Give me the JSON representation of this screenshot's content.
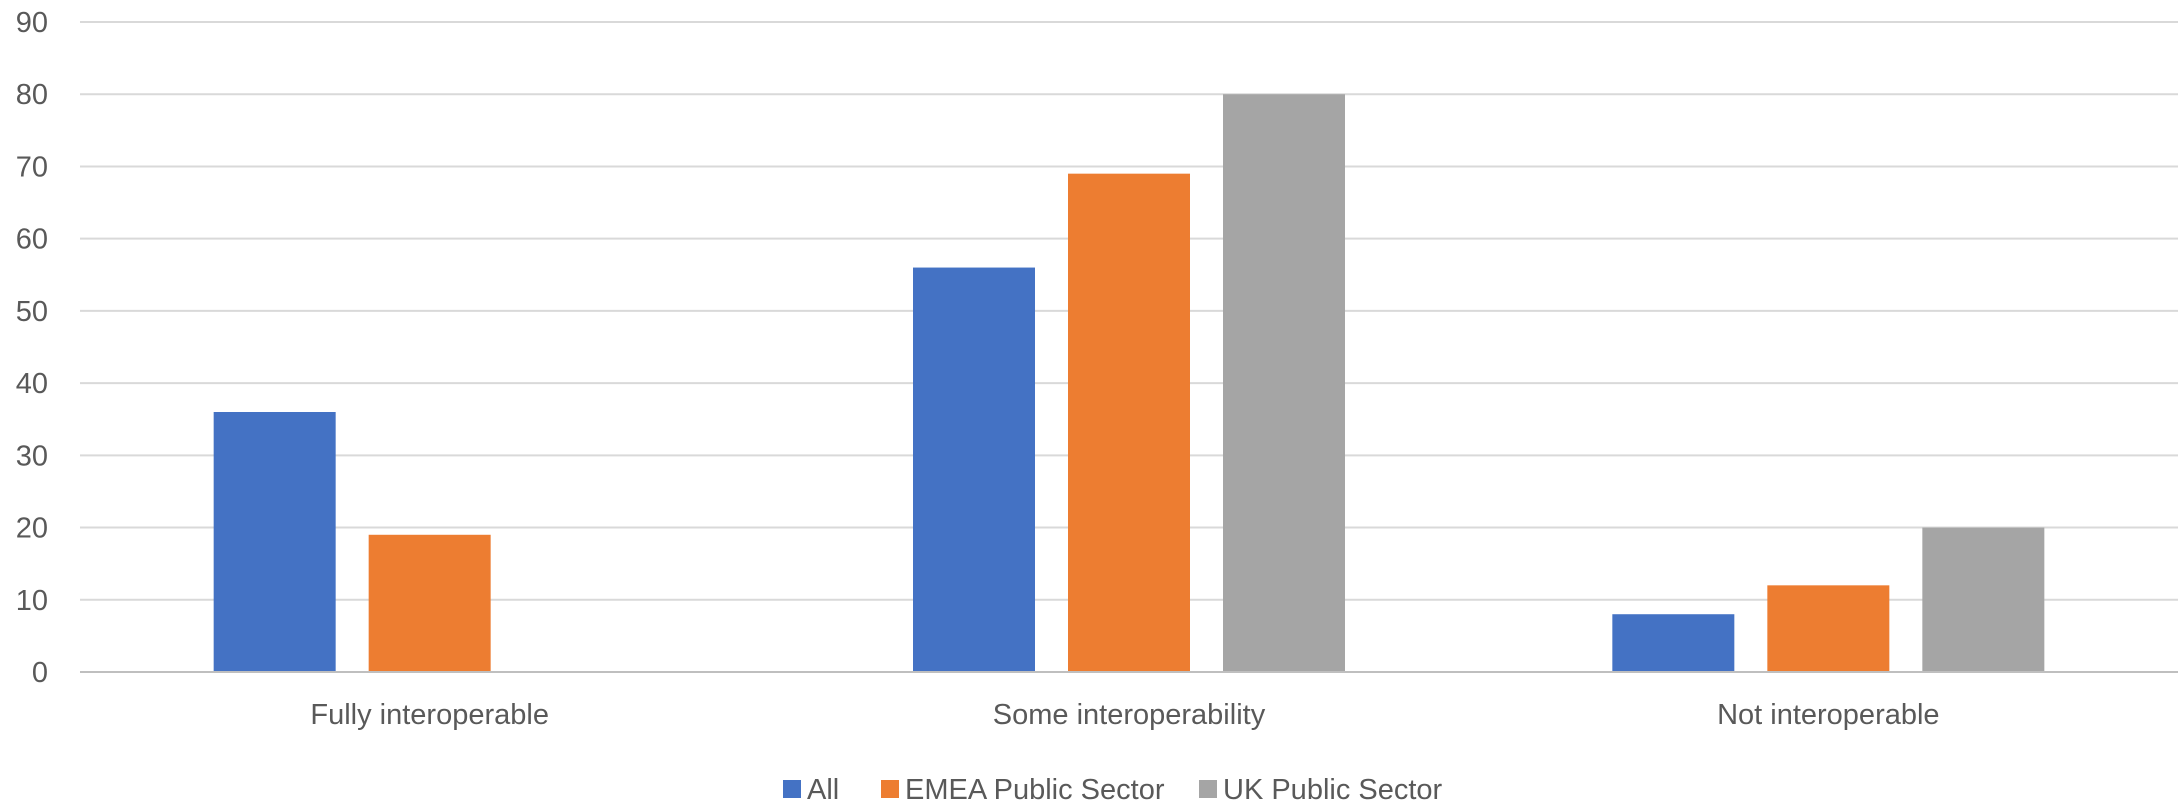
{
  "chart_data": {
    "type": "bar",
    "title": "",
    "xlabel": "",
    "ylabel": "",
    "categories": [
      "Fully interoperable",
      "Some interoperability",
      "Not interoperable"
    ],
    "series": [
      {
        "name": "All",
        "color": "#4472C4",
        "values": [
          36,
          56,
          8
        ]
      },
      {
        "name": "EMEA Public Sector",
        "color": "#ED7D31",
        "values": [
          19,
          69,
          12
        ]
      },
      {
        "name": "UK Public Sector",
        "color": "#A5A5A5",
        "values": [
          null,
          80,
          20
        ]
      }
    ],
    "ylim": [
      0,
      90
    ],
    "yticks": [
      0,
      10,
      20,
      30,
      40,
      50,
      60,
      70,
      80,
      90
    ],
    "grid": true,
    "legend_position": "bottom"
  }
}
